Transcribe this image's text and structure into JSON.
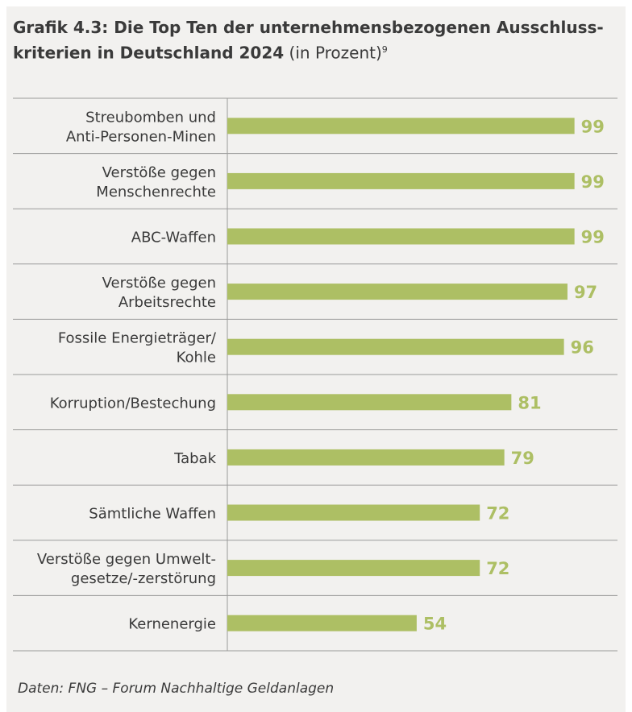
{
  "title": {
    "main": "Grafik 4.3: Die Top Ten der unternehmensbezogenen Ausschluss-kriterien in Deutschland 2024",
    "unit": "(in Prozent)",
    "footnote": "9"
  },
  "source": "Daten: FNG – Forum Nachhaltige Geldanlagen",
  "colors": {
    "bar": "#adbf64",
    "value_label": "#adbf64",
    "category_text": "#3a3a3a",
    "gridline": "#9a9a9a",
    "background": "#f2f1ef"
  },
  "chart_data": {
    "type": "bar",
    "orientation": "horizontal",
    "categories": [
      [
        "Streubomben und",
        "Anti-Personen-Minen"
      ],
      [
        "Verstöße gegen",
        "Menschenrechte"
      ],
      [
        "ABC-Waffen"
      ],
      [
        "Verstöße gegen",
        "Arbeitsrechte"
      ],
      [
        "Fossile Energieträger/",
        "Kohle"
      ],
      [
        "Korruption/Bestechung"
      ],
      [
        "Tabak"
      ],
      [
        "Sämtliche Waffen"
      ],
      [
        "Verstöße gegen Umwelt-",
        "gesetze/-zerstörung"
      ],
      [
        "Kernenergie"
      ]
    ],
    "values": [
      99,
      99,
      99,
      97,
      96,
      81,
      79,
      72,
      72,
      54
    ],
    "xlim": [
      0,
      100
    ],
    "grid": false
  }
}
